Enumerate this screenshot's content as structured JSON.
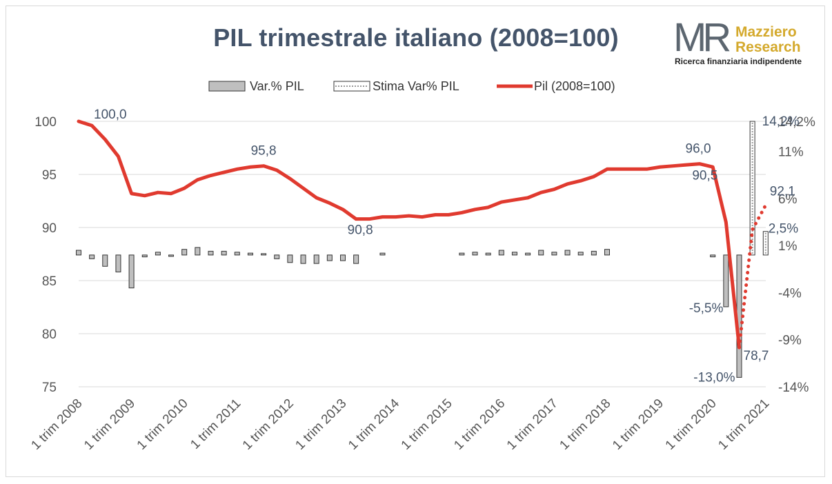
{
  "chart_data": {
    "type": "bar+line",
    "title": "PIL trimestrale italiano (2008=100)",
    "legend": [
      "Var.% PIL",
      "Stima Var% PIL",
      "Pil (2008=100)"
    ],
    "legend_position": "top",
    "grid": true,
    "left_axis": {
      "ylim": [
        75,
        100
      ],
      "ticks": [
        "100",
        "95",
        "90",
        "85",
        "80",
        "75"
      ]
    },
    "right_axis": {
      "ylim": [
        -14,
        14.2
      ],
      "ticks": [
        "14,2%",
        "11%",
        "6%",
        "1%",
        "-4%",
        "-9%",
        "-14%"
      ]
    },
    "x_tick_labels": [
      "1 trim 2008",
      "1 trim 2009",
      "1 trim 2010",
      "1 trim 2011",
      "1 trim 2012",
      "1 trim 2013",
      "1 trim 2014",
      "1 trim 2015",
      "1 trim 2016",
      "1 trim 2017",
      "1 trim 2018",
      "1 trim 2019",
      "1 trim 2020",
      "1 trim 2021"
    ],
    "series": [
      {
        "name": "Pil (2008=100)",
        "kind": "line",
        "color": "#e03a2f",
        "values": [
          100.0,
          99.6,
          98.3,
          96.7,
          93.2,
          93.0,
          93.3,
          93.2,
          93.7,
          94.5,
          94.9,
          95.2,
          95.5,
          95.7,
          95.8,
          95.4,
          94.6,
          93.7,
          92.8,
          92.3,
          91.7,
          90.8,
          90.8,
          91.0,
          91.0,
          91.1,
          91.0,
          91.2,
          91.2,
          91.4,
          91.7,
          91.9,
          92.4,
          92.6,
          92.8,
          93.3,
          93.6,
          94.1,
          94.4,
          94.8,
          95.5,
          95.5,
          95.5,
          95.5,
          95.7,
          95.8,
          95.9,
          96.0,
          95.7,
          90.5,
          78.7
        ],
        "labels": [
          {
            "index": 0,
            "text": "100,0"
          },
          {
            "index": 14,
            "text": "95,8"
          },
          {
            "index": 21,
            "text": "90,8"
          },
          {
            "index": 47,
            "text": "96,0"
          },
          {
            "index": 49,
            "text": "90,5"
          },
          {
            "index": 50,
            "text": "78,7"
          }
        ]
      },
      {
        "name": "Pil (2008=100)",
        "kind": "line-dotted-estimate",
        "color": "#e03a2f",
        "start_index": 50,
        "values": [
          78.7,
          89.8,
          92.1
        ],
        "labels": [
          {
            "index": 52,
            "text": "92,1"
          }
        ]
      },
      {
        "name": "Var.% PIL",
        "kind": "bar",
        "axis": "right",
        "color": "#bfbfbf",
        "values": [
          0.5,
          -0.4,
          -1.2,
          -1.8,
          -3.5,
          -0.2,
          0.3,
          -0.1,
          0.6,
          0.8,
          0.4,
          0.4,
          0.3,
          0.2,
          0.1,
          -0.4,
          -0.8,
          -0.9,
          -0.9,
          -0.6,
          -0.6,
          -0.9,
          null,
          0.2,
          null,
          null,
          null,
          null,
          null,
          0.2,
          0.3,
          0.2,
          0.5,
          0.3,
          0.2,
          0.5,
          0.3,
          0.5,
          0.3,
          0.4,
          0.6,
          null,
          null,
          null,
          null,
          null,
          null,
          null,
          -0.2,
          -5.5,
          -13.0
        ],
        "labels": [
          {
            "index": 49,
            "text": "-5,5%"
          },
          {
            "index": 50,
            "text": "-13,0%"
          }
        ]
      },
      {
        "name": "Stima Var% PIL",
        "kind": "bar",
        "axis": "right",
        "color": "#ffffff",
        "start_index": 51,
        "values": [
          14.2,
          2.5
        ],
        "labels": [
          {
            "index": 51,
            "text": "14,2%"
          },
          {
            "index": 52,
            "text": "2,5%"
          }
        ]
      }
    ]
  },
  "logo": {
    "mark": "MR",
    "name_line1": "Mazziero",
    "name_line2": "Research",
    "tagline": "Ricerca finanziaria indipendente"
  }
}
